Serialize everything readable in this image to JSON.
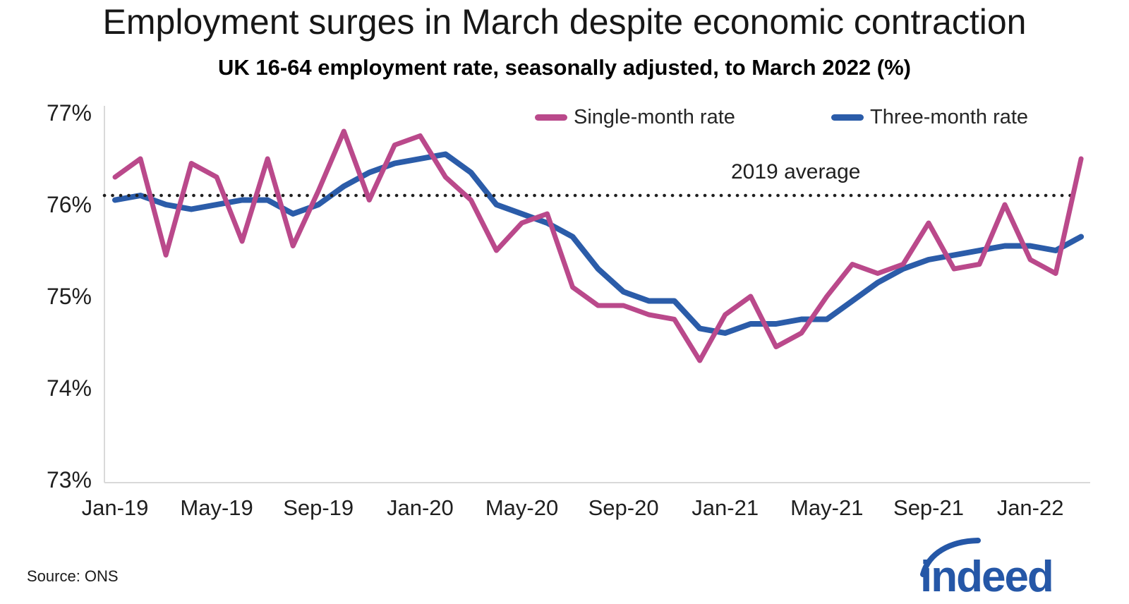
{
  "title": "Employment surges in March despite economic contraction",
  "subtitle": "UK 16-64 employment rate, seasonally adjusted, to March 2022 (%)",
  "source": "Source: ONS",
  "logo_text": "indeed",
  "annotation_label": "2019 average",
  "colors": {
    "single_month": "#ba498b",
    "three_month": "#2b5ca9",
    "reference_dots": "#1f1f1f",
    "axis_line": "#d9d9d9",
    "logo_blue": "#2557a7"
  },
  "legend": [
    {
      "label": "Single-month rate",
      "color": "#ba498b"
    },
    {
      "label": "Three-month rate",
      "color": "#2b5ca9"
    }
  ],
  "chart_data": {
    "type": "line",
    "title": "Employment surges in March despite economic contraction",
    "subtitle": "UK 16-64 employment rate, seasonally adjusted, to March 2022 (%)",
    "ylim": [
      73,
      77
    ],
    "grid": false,
    "legend_position": "top",
    "x": [
      "Jan-19",
      "Feb-19",
      "Mar-19",
      "Apr-19",
      "May-19",
      "Jun-19",
      "Jul-19",
      "Aug-19",
      "Sep-19",
      "Oct-19",
      "Nov-19",
      "Dec-19",
      "Jan-20",
      "Feb-20",
      "Mar-20",
      "Apr-20",
      "May-20",
      "Jun-20",
      "Jul-20",
      "Aug-20",
      "Sep-20",
      "Oct-20",
      "Nov-20",
      "Dec-20",
      "Jan-21",
      "Feb-21",
      "Mar-21",
      "Apr-21",
      "May-21",
      "Jun-21",
      "Jul-21",
      "Aug-21",
      "Sep-21",
      "Oct-21",
      "Nov-21",
      "Dec-21",
      "Jan-22",
      "Feb-22",
      "Mar-22"
    ],
    "x_tick_labels": [
      "Jan-19",
      "May-19",
      "Sep-19",
      "Jan-20",
      "May-20",
      "Sep-20",
      "Jan-21",
      "May-21",
      "Sep-21",
      "Jan-22"
    ],
    "x_tick_step": 4,
    "y_ticks": [
      {
        "value": 77,
        "label": "77%"
      },
      {
        "value": 76,
        "label": "76%"
      },
      {
        "value": 75,
        "label": "75%"
      },
      {
        "value": 74,
        "label": "74%"
      },
      {
        "value": 73,
        "label": "73%"
      }
    ],
    "reference_line": {
      "label": "2019 average",
      "value": 76.1,
      "style": "dotted"
    },
    "series": [
      {
        "name": "Single-month rate",
        "key": "single-month-rate",
        "color": "#ba498b",
        "width": 7,
        "values": [
          76.3,
          76.5,
          75.45,
          76.45,
          76.3,
          75.6,
          76.5,
          75.55,
          76.15,
          76.8,
          76.05,
          76.65,
          76.75,
          76.3,
          76.05,
          75.5,
          75.8,
          75.9,
          75.1,
          74.9,
          74.9,
          74.8,
          74.75,
          74.3,
          74.8,
          75.0,
          74.45,
          74.6,
          75.0,
          75.35,
          75.25,
          75.35,
          75.8,
          75.3,
          75.35,
          76.0,
          75.4,
          75.25,
          76.5
        ]
      },
      {
        "name": "Three-month rate",
        "key": "three-month-rate",
        "color": "#2b5ca9",
        "width": 8,
        "values": [
          76.05,
          76.1,
          76.0,
          75.95,
          76.0,
          76.05,
          76.05,
          75.9,
          76.0,
          76.2,
          76.35,
          76.45,
          76.5,
          76.55,
          76.35,
          76.0,
          75.9,
          75.8,
          75.65,
          75.3,
          75.05,
          74.95,
          74.95,
          74.65,
          74.6,
          74.7,
          74.7,
          74.75,
          74.75,
          74.95,
          75.15,
          75.3,
          75.4,
          75.45,
          75.5,
          75.55,
          75.55,
          75.5,
          75.65
        ]
      }
    ]
  }
}
